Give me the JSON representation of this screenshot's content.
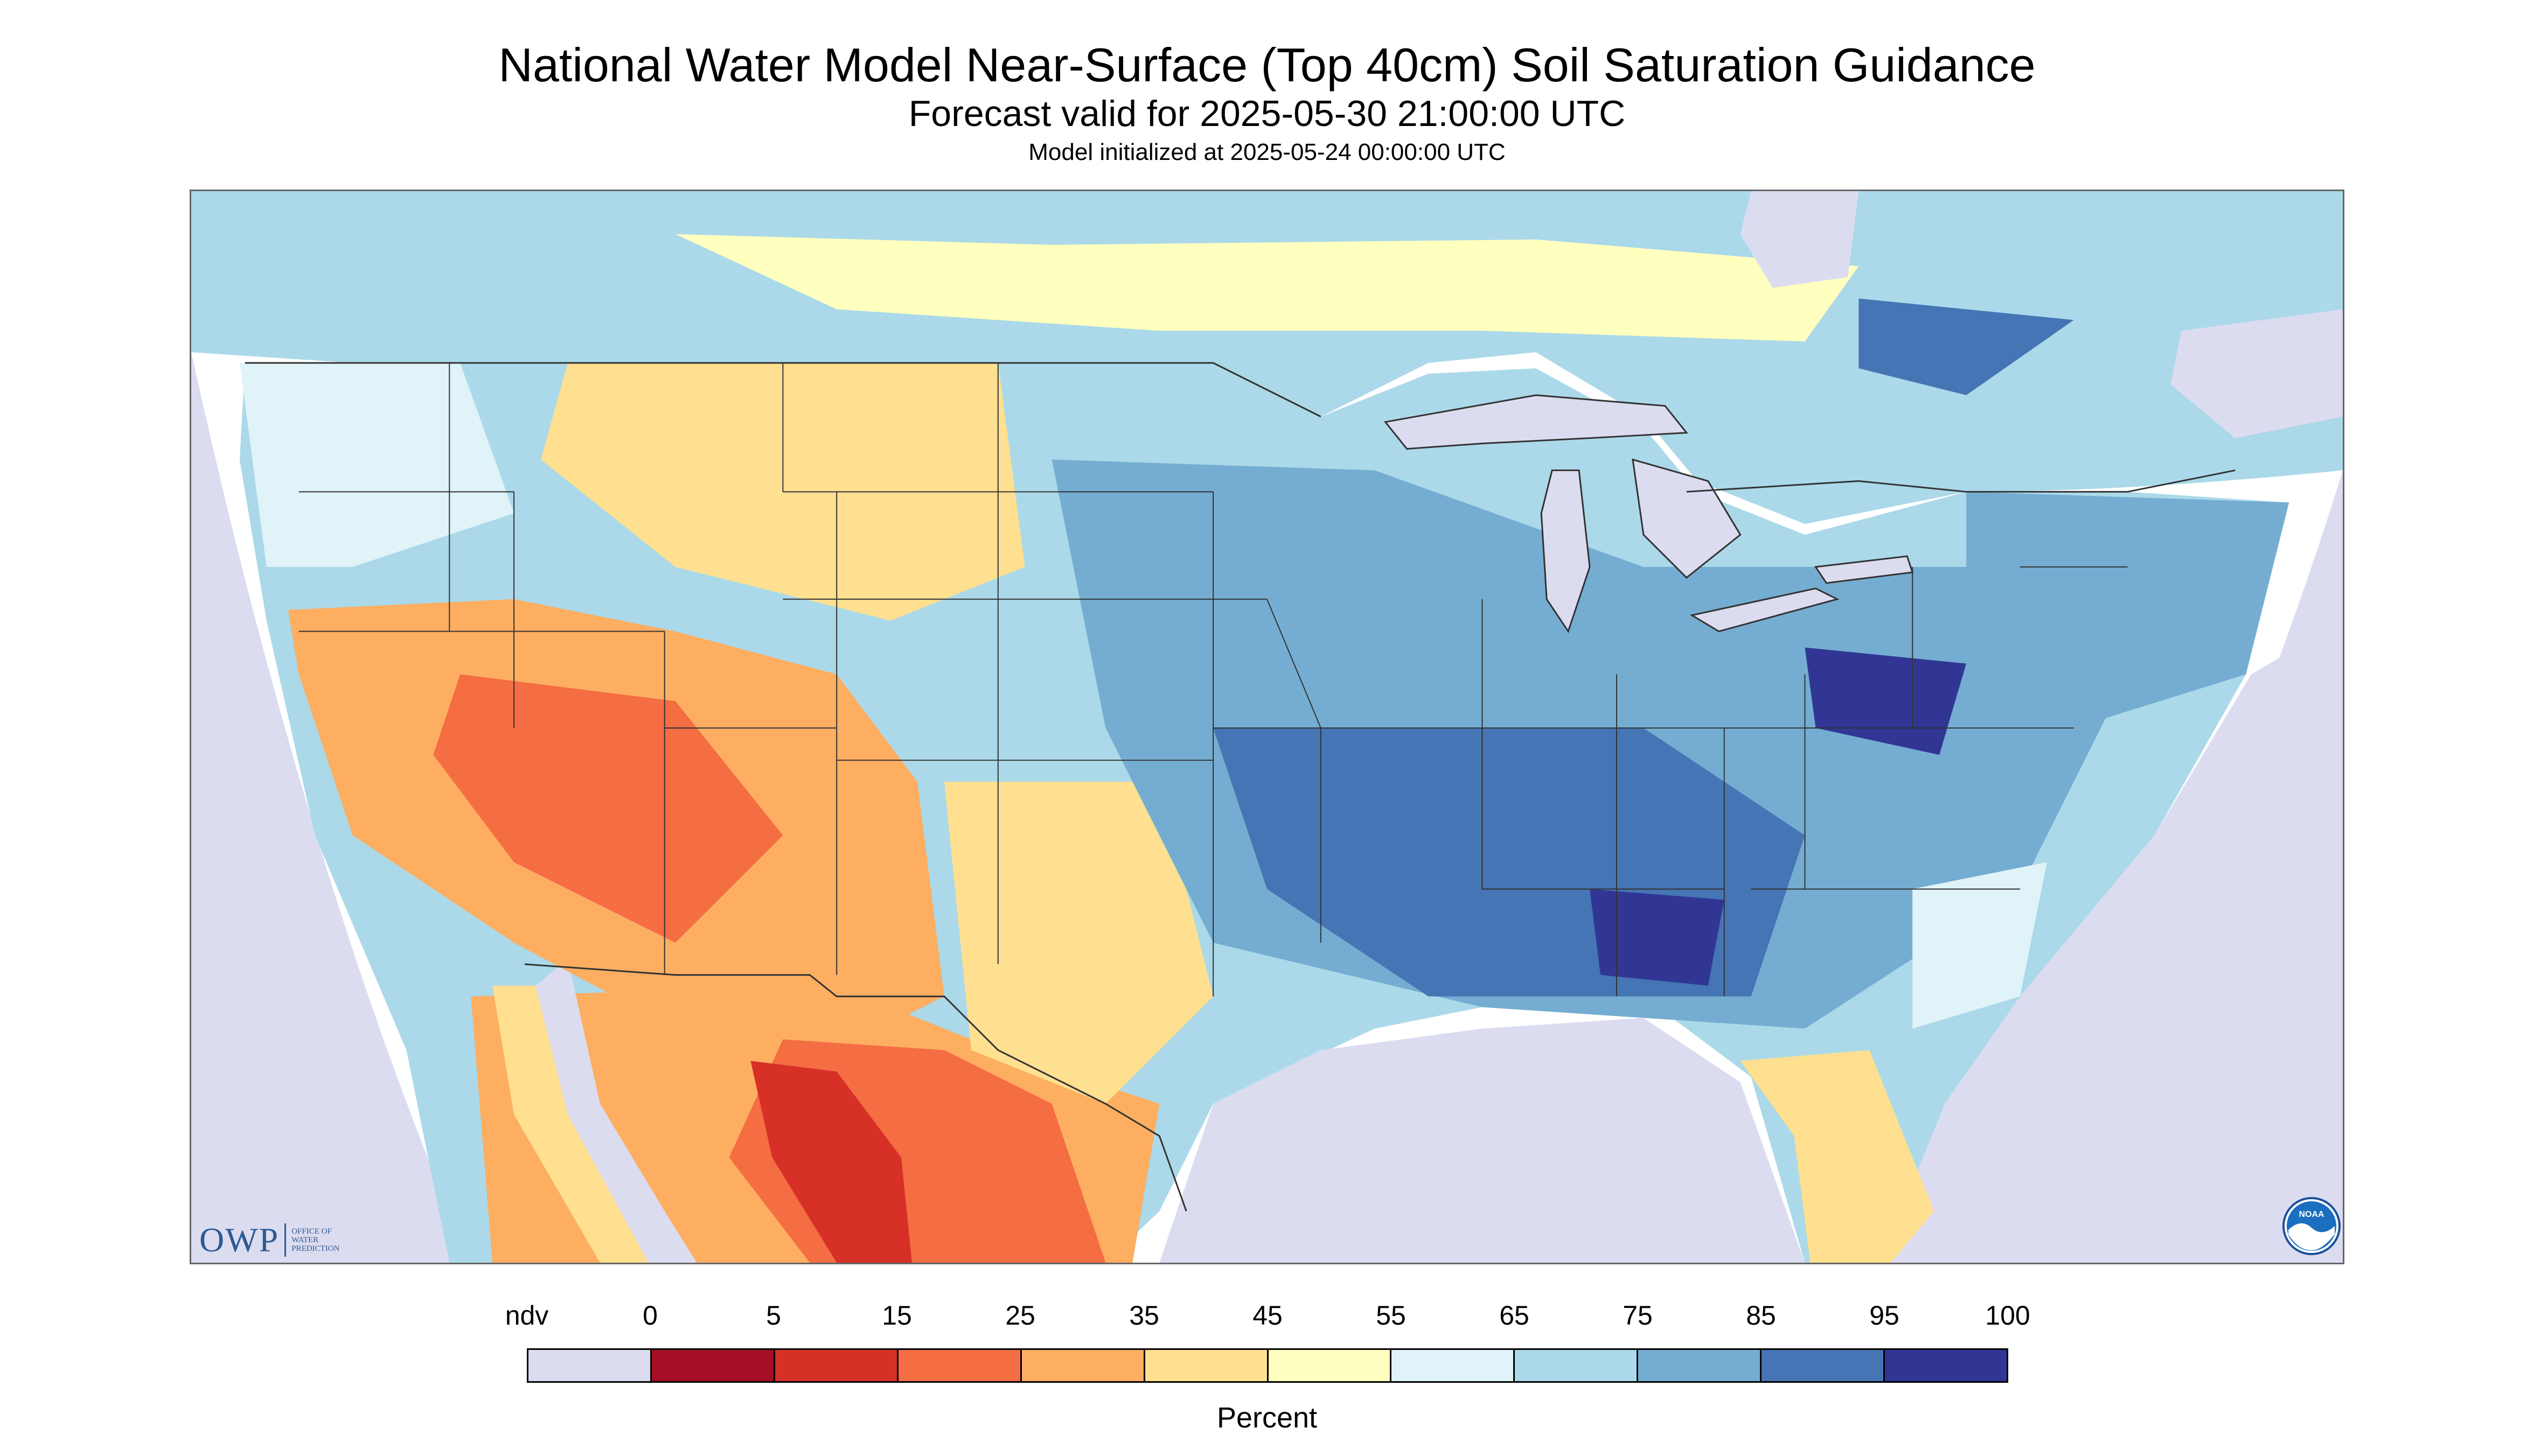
{
  "header": {
    "title": "National Water Model Near-Surface (Top 40cm) Soil Saturation Guidance",
    "subtitle": "Forecast valid for 2025-05-30 21:00:00 UTC",
    "init": "Model initialized at 2025-05-24 00:00:00 UTC"
  },
  "logos": {
    "owp_mark": "OWP",
    "owp_line1": "OFFICE OF",
    "owp_line2": "WATER",
    "owp_line3": "PREDICTION",
    "noaa_text": "NOAA"
  },
  "legend": {
    "title": "Percent",
    "ticks": [
      "ndv",
      "0",
      "5",
      "15",
      "25",
      "35",
      "45",
      "55",
      "65",
      "75",
      "85",
      "95",
      "100"
    ],
    "colors": [
      "#dcdcf0",
      "#a50f25",
      "#d73027",
      "#f46d43",
      "#fdae61",
      "#fee090",
      "#ffffbf",
      "#e0f3f8",
      "#abd9e9",
      "#74add1",
      "#4575b4",
      "#313695"
    ]
  },
  "map": {
    "colors": {
      "nodata": "#dcdcf0",
      "water": "#dcdcf0",
      "boundary": "#333333",
      "vdry": "#a50f25",
      "dry": "#d73027",
      "orange": "#f46d43",
      "lightorange": "#fdae61",
      "sand": "#fee090",
      "yellow": "#ffffbf",
      "pale": "#e0f3f8",
      "light": "#abd9e9",
      "mid": "#74add1",
      "blue": "#4575b4",
      "dark": "#313695"
    }
  }
}
